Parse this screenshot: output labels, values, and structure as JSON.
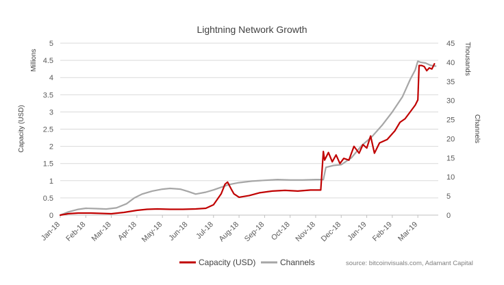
{
  "chart_data": {
    "type": "line",
    "title": "Lightning Network Growth",
    "y_left_label": "Capacity (USD)",
    "y_left_units": "Millions",
    "y_left_range": [
      0,
      5
    ],
    "y_left_ticks": [
      "0",
      "0.5",
      "1",
      "1.5",
      "2",
      "2.5",
      "3",
      "3.5",
      "4",
      "4.5",
      "5"
    ],
    "y_right_label": "Channels",
    "y_right_units": "Thousands",
    "y_right_range": [
      0,
      45
    ],
    "y_right_ticks": [
      "0",
      "5",
      "10",
      "15",
      "20",
      "25",
      "30",
      "35",
      "40",
      "45"
    ],
    "x_range": [
      0,
      14.8
    ],
    "x_tick_labels": [
      "Jan-18",
      "Feb-18",
      "Mar-18",
      "Apr-18",
      "May-18",
      "Jun-18",
      "Jul-18",
      "Aug-18",
      "Sep-18",
      "Oct-18",
      "Nov-18",
      "Dec-18",
      "Jan-19",
      "Feb-19",
      "Mar-19"
    ],
    "grid": true,
    "series": [
      {
        "name": "Capacity (USD)",
        "color": "#c00000",
        "axis": "left",
        "x": [
          0,
          0.3,
          0.7,
          1.2,
          1.6,
          2.0,
          2.5,
          3.0,
          3.4,
          3.8,
          4.3,
          4.8,
          5.3,
          5.7,
          6.0,
          6.3,
          6.45,
          6.55,
          6.7,
          6.8,
          7.0,
          7.4,
          7.8,
          8.3,
          8.8,
          9.3,
          9.8,
          10.2,
          10.3,
          10.35,
          10.5,
          10.65,
          10.8,
          10.95,
          11.1,
          11.3,
          11.5,
          11.7,
          11.85,
          12.0,
          12.15,
          12.3,
          12.5,
          12.8,
          13.1,
          13.3,
          13.5,
          13.7,
          13.9,
          14.0,
          14.05,
          14.15,
          14.25,
          14.35,
          14.45,
          14.55,
          14.65
        ],
        "values": [
          0.0,
          0.04,
          0.06,
          0.06,
          0.05,
          0.04,
          0.08,
          0.14,
          0.17,
          0.18,
          0.17,
          0.17,
          0.18,
          0.2,
          0.3,
          0.62,
          0.9,
          0.96,
          0.75,
          0.62,
          0.52,
          0.57,
          0.65,
          0.7,
          0.72,
          0.7,
          0.73,
          0.73,
          1.85,
          1.6,
          1.82,
          1.55,
          1.75,
          1.5,
          1.65,
          1.6,
          2.0,
          1.8,
          2.05,
          1.95,
          2.3,
          1.8,
          2.1,
          2.2,
          2.45,
          2.7,
          2.8,
          3.0,
          3.2,
          3.35,
          4.35,
          4.35,
          4.32,
          4.2,
          4.28,
          4.25,
          4.4
        ],
        "end_label_value": ""
      },
      {
        "name": "Channels",
        "color": "#a6a6a6",
        "axis": "right",
        "x": [
          0,
          0.3,
          0.7,
          1.0,
          1.4,
          1.8,
          2.2,
          2.6,
          2.9,
          3.2,
          3.6,
          4.0,
          4.3,
          4.7,
          5.0,
          5.3,
          5.7,
          6.0,
          6.3,
          6.6,
          7.0,
          7.5,
          8.0,
          8.5,
          9.0,
          9.5,
          10.0,
          10.3,
          10.4,
          10.7,
          11.0,
          11.4,
          11.8,
          12.2,
          12.6,
          13.0,
          13.4,
          13.7,
          13.9,
          14.0,
          14.1,
          14.3,
          14.5,
          14.7
        ],
        "values": [
          0,
          0.8,
          1.5,
          1.8,
          1.7,
          1.6,
          1.9,
          3.0,
          4.5,
          5.5,
          6.3,
          6.8,
          7.0,
          6.8,
          6.2,
          5.5,
          6.0,
          6.6,
          7.3,
          8.0,
          8.5,
          8.9,
          9.1,
          9.3,
          9.2,
          9.2,
          9.3,
          9.3,
          12.5,
          13.0,
          13.2,
          15.0,
          18.2,
          20.5,
          23.5,
          27.0,
          31.0,
          35.5,
          38.0,
          40.3,
          40.0,
          39.8,
          39.2,
          39.0
        ]
      }
    ],
    "legend": [
      "Capacity (USD)",
      "Channels"
    ],
    "legend_position": "bottom",
    "source_note": "source: bitcoinvisuals.com, Adamant Capital"
  }
}
